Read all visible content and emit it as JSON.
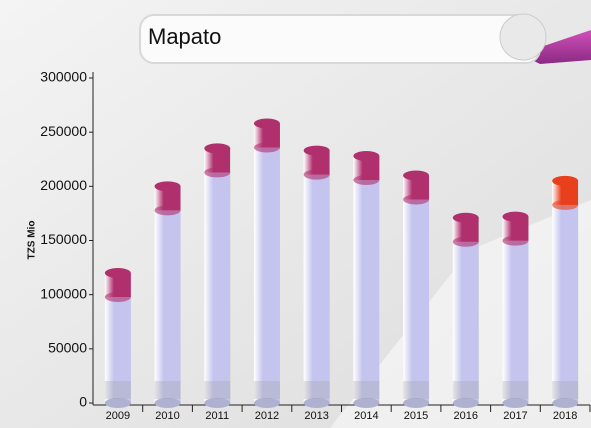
{
  "chart_data": {
    "type": "bar",
    "title": "Mapato",
    "y_label": "TZS Mio",
    "categories": [
      "2009",
      "2010",
      "2011",
      "2012",
      "2013",
      "2014",
      "2015",
      "2016",
      "2017",
      "2018"
    ],
    "values": [
      120000,
      200000,
      235000,
      258000,
      233000,
      228000,
      210000,
      171000,
      172000,
      205000
    ],
    "color": "#c4c4ee",
    "cap_colors": [
      "#b0306e",
      "#b0306e",
      "#b0306e",
      "#b0306e",
      "#b0306e",
      "#b0306e",
      "#b0306e",
      "#b0306e",
      "#b0306e",
      "#e8401c"
    ],
    "ylim": [
      0,
      300000
    ],
    "yticks": [
      0,
      50000,
      100000,
      150000,
      200000,
      250000,
      300000
    ]
  }
}
